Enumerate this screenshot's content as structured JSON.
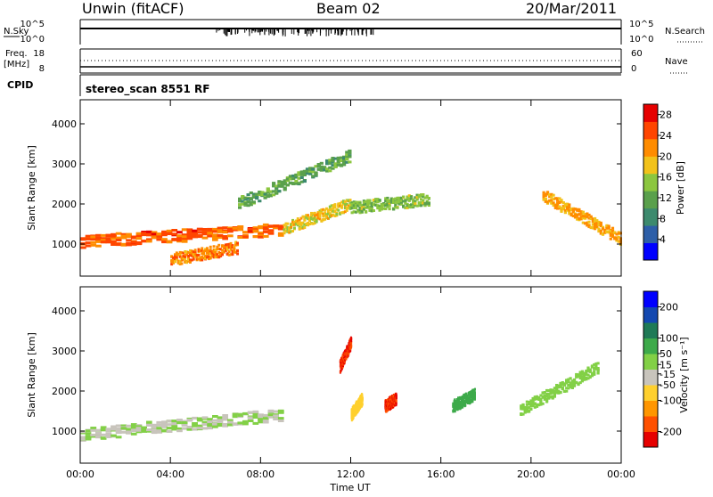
{
  "header": {
    "radar": "Unwin (fitACF)",
    "beam": "Beam 02",
    "date": "20/Mar/2011"
  },
  "strip": {
    "nsky_label": "N.Sky",
    "nsky_ticks": [
      "10^5",
      "10^0"
    ],
    "nsearch_label": "N.Search",
    "nsearch_ticks": [
      "10^5",
      "10^0"
    ],
    "freq_label": "Freq.",
    "freq_unit": "[MHz]",
    "freq_ticks": [
      "18",
      "8"
    ],
    "nave_label": "Nave",
    "nave_ticks": [
      "60",
      "0"
    ],
    "cpid_label": "CPID",
    "program": "stereo_scan 8551 RF"
  },
  "colors": {
    "power": [
      "#0000ff",
      "#2e5fa8",
      "#3d8a6e",
      "#5aa04c",
      "#8cc63f",
      "#f2c21a",
      "#ff8c00",
      "#ff4500",
      "#e60000"
    ],
    "velocity": [
      "#e60000",
      "#ff5000",
      "#ff9600",
      "#ffd02e",
      "#c8c4bc",
      "#82d046",
      "#3daa4a",
      "#1f7a56",
      "#1448b0",
      "#0000ff"
    ]
  },
  "chart_data": [
    {
      "type": "heatmap",
      "panel": "power",
      "xlabel": "",
      "ylabel": "Slant Range [km]",
      "x_ticks": [
        "00:00",
        "04:00",
        "08:00",
        "12:00",
        "16:00",
        "20:00",
        "00:00"
      ],
      "xlim_hours": [
        0,
        24
      ],
      "ylim": [
        200,
        4600
      ],
      "y_ticks": [
        1000,
        2000,
        3000,
        4000
      ],
      "colorbar_label": "Power [dB]",
      "colorbar_ticks": [
        4,
        8,
        12,
        16,
        20,
        24,
        28
      ],
      "colorbar_range": [
        0,
        30
      ],
      "features": [
        {
          "t_start": 0,
          "t_end": 9,
          "range_start": 1050,
          "range_end": 1350,
          "value": 24
        },
        {
          "t_start": 9,
          "t_end": 12,
          "range_start": 1350,
          "range_end": 2000,
          "value": 18
        },
        {
          "t_start": 12,
          "t_end": 15.5,
          "range_start": 1900,
          "range_end": 2100,
          "value": 14
        },
        {
          "t_start": 20.5,
          "t_end": 24,
          "range_start": 2200,
          "range_end": 1100,
          "value": 20
        },
        {
          "t_start": 4,
          "t_end": 7,
          "range_start": 600,
          "range_end": 900,
          "value": 22
        },
        {
          "t_start": 7,
          "t_end": 12,
          "range_start": 2000,
          "range_end": 3200,
          "value": 12
        }
      ]
    },
    {
      "type": "heatmap",
      "panel": "velocity",
      "xlabel": "Time UT",
      "ylabel": "Slant Range [km]",
      "x_ticks": [
        "00:00",
        "04:00",
        "08:00",
        "12:00",
        "16:00",
        "20:00",
        "00:00"
      ],
      "xlim_hours": [
        0,
        24
      ],
      "ylim": [
        200,
        4600
      ],
      "y_ticks": [
        1000,
        2000,
        3000,
        4000
      ],
      "colorbar_label": "Velocity [m s⁻¹]",
      "colorbar_ticks": [
        -200,
        -100,
        -50,
        -15,
        15,
        50,
        100,
        200
      ],
      "colorbar_range": [
        -250,
        250
      ],
      "features": [
        {
          "t_start": 0,
          "t_end": 9,
          "range_start": 900,
          "range_end": 1400,
          "value": 0
        },
        {
          "t_start": 11.5,
          "t_end": 12,
          "range_start": 2600,
          "range_end": 3200,
          "value": -200
        },
        {
          "t_start": 12,
          "t_end": 12.5,
          "range_start": 1400,
          "range_end": 1800,
          "value": -80
        },
        {
          "t_start": 13.5,
          "t_end": 14,
          "range_start": 1600,
          "range_end": 1800,
          "value": -200
        },
        {
          "t_start": 16.5,
          "t_end": 17.5,
          "range_start": 1600,
          "range_end": 1900,
          "value": 80
        },
        {
          "t_start": 19.5,
          "t_end": 23,
          "range_start": 1500,
          "range_end": 2600,
          "value": 30
        }
      ]
    }
  ]
}
